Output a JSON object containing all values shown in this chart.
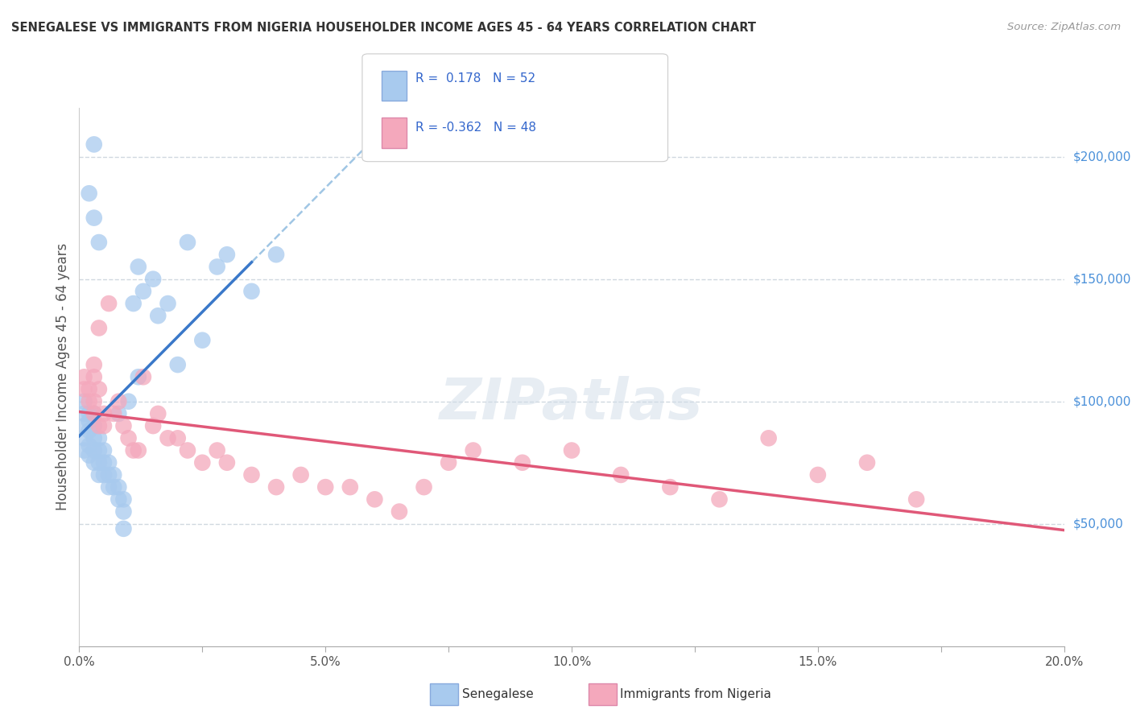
{
  "title": "SENEGALESE VS IMMIGRANTS FROM NIGERIA HOUSEHOLDER INCOME AGES 45 - 64 YEARS CORRELATION CHART",
  "source": "Source: ZipAtlas.com",
  "ylabel": "Householder Income Ages 45 - 64 years",
  "legend_label1": "Senegalese",
  "legend_label2": "Immigrants from Nigeria",
  "R1": 0.178,
  "N1": 52,
  "R2": -0.362,
  "N2": 48,
  "color1": "#a8caee",
  "color2": "#f4a8bc",
  "line_color1": "#3a78c9",
  "line_color2": "#e05878",
  "dash_color": "#90bce0",
  "xmin": 0.0,
  "xmax": 0.2,
  "ymin": 0,
  "ymax": 220000,
  "yticks": [
    50000,
    100000,
    150000,
    200000
  ],
  "ytick_labels": [
    "$50,000",
    "$100,000",
    "$150,000",
    "$200,000"
  ],
  "xticks": [
    0.0,
    0.025,
    0.05,
    0.075,
    0.1,
    0.125,
    0.15,
    0.175,
    0.2
  ],
  "xtick_labels": [
    "0.0%",
    "",
    "5.0%",
    "",
    "10.0%",
    "",
    "15.0%",
    "",
    "20.0%"
  ],
  "background_color": "#ffffff",
  "grid_color": "#d0d8e0",
  "senegalese_x": [
    0.001,
    0.001,
    0.001,
    0.001,
    0.001,
    0.002,
    0.002,
    0.002,
    0.002,
    0.002,
    0.003,
    0.003,
    0.003,
    0.003,
    0.003,
    0.004,
    0.004,
    0.004,
    0.004,
    0.005,
    0.005,
    0.005,
    0.006,
    0.006,
    0.006,
    0.007,
    0.007,
    0.008,
    0.008,
    0.009,
    0.009,
    0.01,
    0.012,
    0.013,
    0.015,
    0.016,
    0.018,
    0.02,
    0.022,
    0.025,
    0.028,
    0.03,
    0.035,
    0.04,
    0.008,
    0.009,
    0.011,
    0.012,
    0.003,
    0.004,
    0.002,
    0.003
  ],
  "senegalese_y": [
    95000,
    100000,
    90000,
    85000,
    80000,
    88000,
    82000,
    78000,
    92000,
    95000,
    85000,
    80000,
    75000,
    90000,
    95000,
    80000,
    75000,
    70000,
    85000,
    75000,
    70000,
    80000,
    70000,
    65000,
    75000,
    65000,
    70000,
    60000,
    65000,
    55000,
    60000,
    100000,
    110000,
    145000,
    150000,
    135000,
    140000,
    115000,
    165000,
    125000,
    155000,
    160000,
    145000,
    160000,
    95000,
    48000,
    140000,
    155000,
    175000,
    165000,
    185000,
    205000
  ],
  "nigeria_x": [
    0.001,
    0.001,
    0.002,
    0.002,
    0.003,
    0.003,
    0.003,
    0.004,
    0.004,
    0.005,
    0.005,
    0.006,
    0.007,
    0.008,
    0.009,
    0.01,
    0.011,
    0.012,
    0.013,
    0.015,
    0.016,
    0.018,
    0.02,
    0.022,
    0.025,
    0.028,
    0.03,
    0.035,
    0.04,
    0.045,
    0.05,
    0.055,
    0.06,
    0.065,
    0.07,
    0.075,
    0.08,
    0.09,
    0.1,
    0.11,
    0.12,
    0.13,
    0.14,
    0.15,
    0.16,
    0.17,
    0.003,
    0.004
  ],
  "nigeria_y": [
    105000,
    110000,
    100000,
    105000,
    100000,
    95000,
    110000,
    90000,
    130000,
    95000,
    90000,
    140000,
    95000,
    100000,
    90000,
    85000,
    80000,
    80000,
    110000,
    90000,
    95000,
    85000,
    85000,
    80000,
    75000,
    80000,
    75000,
    70000,
    65000,
    70000,
    65000,
    65000,
    60000,
    55000,
    65000,
    75000,
    80000,
    75000,
    80000,
    70000,
    65000,
    60000,
    85000,
    70000,
    75000,
    60000,
    115000,
    105000
  ]
}
